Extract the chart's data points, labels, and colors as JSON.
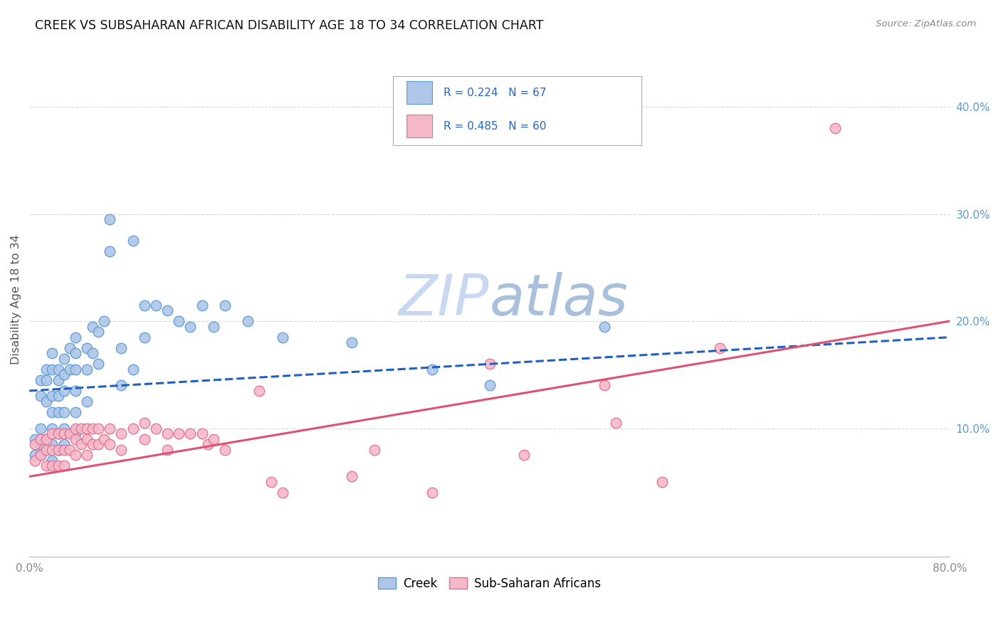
{
  "title": "CREEK VS SUBSAHARAN AFRICAN DISABILITY AGE 18 TO 34 CORRELATION CHART",
  "source": "Source: ZipAtlas.com",
  "ylabel": "Disability Age 18 to 34",
  "xlim": [
    0.0,
    0.8
  ],
  "ylim": [
    -0.02,
    0.46
  ],
  "xticks": [
    0.0,
    0.1,
    0.2,
    0.3,
    0.4,
    0.5,
    0.6,
    0.7,
    0.8
  ],
  "xticklabels": [
    "0.0%",
    "",
    "",
    "",
    "",
    "",
    "",
    "",
    "80.0%"
  ],
  "yticks_right": [
    0.1,
    0.2,
    0.3,
    0.4
  ],
  "ytick_labels_right": [
    "10.0%",
    "20.0%",
    "30.0%",
    "40.0%"
  ],
  "creek_color": "#aec6e8",
  "creek_edge_color": "#5b9bd5",
  "subsaharan_color": "#f4b8c8",
  "subsaharan_edge_color": "#e07090",
  "creek_line_color": "#2060c0",
  "subsaharan_line_color": "#e05070",
  "watermark_zip_color": "#c8d8f0",
  "watermark_atlas_color": "#a0b8d8",
  "background_color": "#ffffff",
  "grid_color": "#d0d8e8",
  "creek_scatter_x": [
    0.005,
    0.005,
    0.01,
    0.01,
    0.01,
    0.01,
    0.01,
    0.015,
    0.015,
    0.015,
    0.015,
    0.02,
    0.02,
    0.02,
    0.02,
    0.02,
    0.02,
    0.02,
    0.025,
    0.025,
    0.025,
    0.025,
    0.025,
    0.025,
    0.03,
    0.03,
    0.03,
    0.03,
    0.03,
    0.03,
    0.035,
    0.035,
    0.04,
    0.04,
    0.04,
    0.04,
    0.04,
    0.04,
    0.05,
    0.05,
    0.05,
    0.055,
    0.055,
    0.06,
    0.06,
    0.065,
    0.07,
    0.07,
    0.08,
    0.08,
    0.09,
    0.09,
    0.1,
    0.1,
    0.11,
    0.12,
    0.13,
    0.14,
    0.15,
    0.16,
    0.17,
    0.19,
    0.22,
    0.28,
    0.35,
    0.4,
    0.5
  ],
  "creek_scatter_y": [
    0.09,
    0.075,
    0.145,
    0.13,
    0.1,
    0.085,
    0.075,
    0.155,
    0.145,
    0.125,
    0.09,
    0.17,
    0.155,
    0.13,
    0.115,
    0.1,
    0.085,
    0.07,
    0.155,
    0.145,
    0.13,
    0.115,
    0.095,
    0.08,
    0.165,
    0.15,
    0.135,
    0.115,
    0.1,
    0.085,
    0.175,
    0.155,
    0.185,
    0.17,
    0.155,
    0.135,
    0.115,
    0.095,
    0.175,
    0.155,
    0.125,
    0.195,
    0.17,
    0.19,
    0.16,
    0.2,
    0.295,
    0.265,
    0.175,
    0.14,
    0.275,
    0.155,
    0.215,
    0.185,
    0.215,
    0.21,
    0.2,
    0.195,
    0.215,
    0.195,
    0.215,
    0.2,
    0.185,
    0.18,
    0.155,
    0.14,
    0.195
  ],
  "subsaharan_scatter_x": [
    0.005,
    0.005,
    0.01,
    0.01,
    0.015,
    0.015,
    0.015,
    0.02,
    0.02,
    0.02,
    0.025,
    0.025,
    0.025,
    0.03,
    0.03,
    0.03,
    0.035,
    0.035,
    0.04,
    0.04,
    0.04,
    0.045,
    0.045,
    0.05,
    0.05,
    0.05,
    0.055,
    0.055,
    0.06,
    0.06,
    0.065,
    0.07,
    0.07,
    0.08,
    0.08,
    0.09,
    0.1,
    0.1,
    0.11,
    0.12,
    0.12,
    0.13,
    0.14,
    0.15,
    0.155,
    0.16,
    0.17,
    0.2,
    0.21,
    0.22,
    0.28,
    0.3,
    0.35,
    0.4,
    0.43,
    0.5,
    0.51,
    0.55,
    0.6,
    0.7
  ],
  "subsaharan_scatter_y": [
    0.085,
    0.07,
    0.09,
    0.075,
    0.09,
    0.08,
    0.065,
    0.095,
    0.08,
    0.065,
    0.095,
    0.08,
    0.065,
    0.095,
    0.08,
    0.065,
    0.095,
    0.08,
    0.1,
    0.09,
    0.075,
    0.1,
    0.085,
    0.1,
    0.09,
    0.075,
    0.1,
    0.085,
    0.1,
    0.085,
    0.09,
    0.1,
    0.085,
    0.095,
    0.08,
    0.1,
    0.105,
    0.09,
    0.1,
    0.095,
    0.08,
    0.095,
    0.095,
    0.095,
    0.085,
    0.09,
    0.08,
    0.135,
    0.05,
    0.04,
    0.055,
    0.08,
    0.04,
    0.16,
    0.075,
    0.14,
    0.105,
    0.05,
    0.175,
    0.38
  ],
  "creek_line_x0": 0.0,
  "creek_line_x1": 0.8,
  "creek_line_y0": 0.135,
  "creek_line_y1": 0.185,
  "subsaharan_line_x0": 0.0,
  "subsaharan_line_x1": 0.8,
  "subsaharan_line_y0": 0.055,
  "subsaharan_line_y1": 0.2
}
